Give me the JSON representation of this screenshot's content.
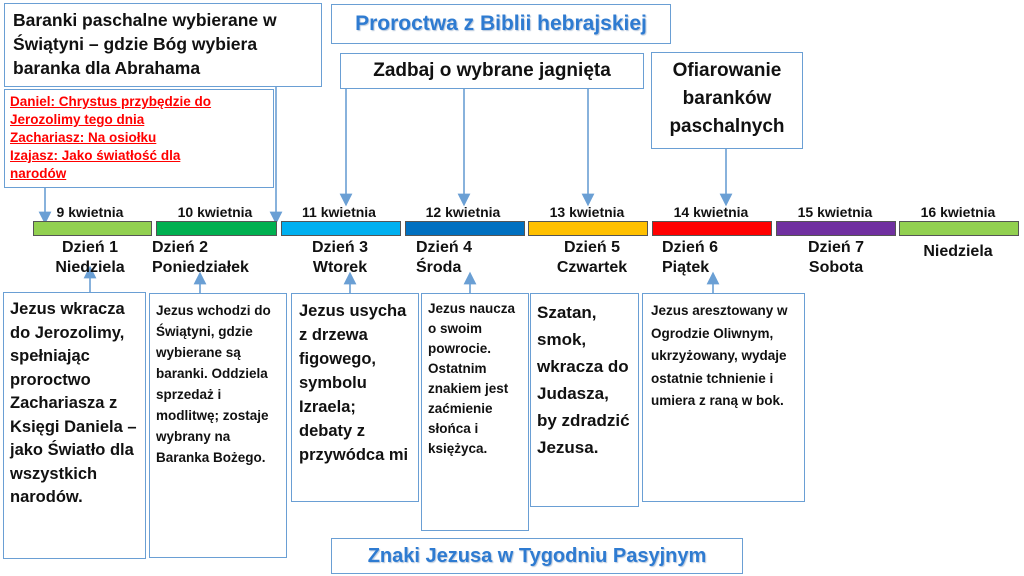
{
  "title_top": "Proroctwa z Biblii hebrajskiej",
  "title_bottom": "Znaki Jezusa w Tygodniu Pasyjnym",
  "top_left_box": "Baranki paschalne wybierane w Świątyni – gdzie Bóg wybiera baranka dla Abrahama",
  "red_prophecies": [
    "Daniel: Chrystus przybędzie do",
    "Jerozolimy tego dnia",
    "Zachariasz: Na osiołku",
    "Izajasz: Jako światłość dla",
    "narodów"
  ],
  "top_mid_box": "Zadbaj o wybrane jagnięta",
  "top_right_box": "Ofiarowanie baranków paschalnych",
  "colors": {
    "day1": "#92d050",
    "day2": "#00b050",
    "day3": "#00b0f0",
    "day4": "#0070c0",
    "day5": "#ffc000",
    "day6": "#ff0000",
    "day7": "#7030a0",
    "day8": "#92d050",
    "accent": "#2e7bd1",
    "prophecy": "#ff0000"
  },
  "days": [
    {
      "date": "9 kwietnia",
      "line1": "Dzień 1",
      "line2": "Niedziela"
    },
    {
      "date": "10 kwietnia",
      "line1": "Dzień 2",
      "line2": "Poniedziałek"
    },
    {
      "date": "11 kwietnia",
      "line1": "Dzień 3",
      "line2": "Wtorek"
    },
    {
      "date": "12 kwietnia",
      "line1": "Dzień 4",
      "line2": "Środa"
    },
    {
      "date": "13 kwietnia",
      "line1": "Dzień 5",
      "line2": "Czwartek"
    },
    {
      "date": "14 kwietnia",
      "line1": "Dzień 6",
      "line2": "Piątek"
    },
    {
      "date": "15 kwietnia",
      "line1": "Dzień 7",
      "line2": "Sobota"
    },
    {
      "date": "16 kwietnia",
      "line1": "",
      "line2": "Niedziela"
    }
  ],
  "notes": [
    "Jezus wkracza do Jerozolimy, spełniając proroctwo Zachariasza z Księgi Daniela – jako Światło dla wszystkich narodów.",
    "Jezus wchodzi do Świątyni, gdzie wybierane są baranki. Oddziela sprzedaż i modlitwę; zostaje wybrany na Baranka Bożego.",
    "Jezus usycha z drzewa figowego, symbolu Izraela; debaty z przywódca mi",
    "Jezus naucza o swoim powrocie. Ostatnim znakiem jest zaćmienie słońca i księżyca.",
    "Szatan, smok, wkracza do Judasza, by zdradzić Jezusa.",
    "Jezus aresztowany w Ogrodzie Oliwnym, ukrzyżowany, wydaje ostatnie tchnienie i umiera z raną w bok."
  ]
}
